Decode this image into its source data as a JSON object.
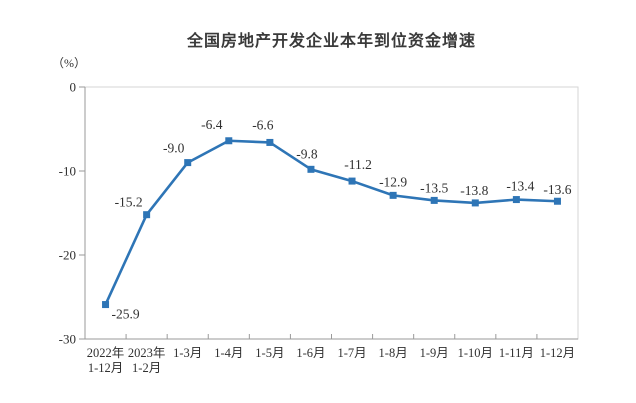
{
  "chart_data": {
    "type": "line",
    "title": "全国房地产开发企业本年到位资金增速",
    "unit_label": "（%）",
    "categories": [
      [
        "2022年",
        "1-12月"
      ],
      [
        "2023年",
        "1-2月"
      ],
      [
        "1-3月"
      ],
      [
        "1-4月"
      ],
      [
        "1-5月"
      ],
      [
        "1-6月"
      ],
      [
        "1-7月"
      ],
      [
        "1-8月"
      ],
      [
        "1-9月"
      ],
      [
        "1-10月"
      ],
      [
        "1-11月"
      ],
      [
        "1-12月"
      ]
    ],
    "values": [
      -25.9,
      -15.2,
      -9.0,
      -6.4,
      -6.6,
      -9.8,
      -11.2,
      -12.9,
      -13.5,
      -13.8,
      -13.4,
      -13.6
    ],
    "point_labels": [
      "-25.9",
      "-15.2",
      "-9.0",
      "-6.4",
      "-6.6",
      "-9.8",
      "-11.2",
      "-12.9",
      "-13.5",
      "-13.8",
      "-13.4",
      "-13.6"
    ],
    "xlabel": "",
    "ylabel": "",
    "ylim": [
      -30,
      0
    ],
    "yticks": [
      0,
      -10,
      -20,
      -30
    ],
    "ytick_labels": [
      "0",
      "-10",
      "-20",
      "-30"
    ],
    "grid": "off",
    "legend": "none",
    "line_color": "#2E75B6",
    "marker_color": "#2E75B6",
    "marker_shape": "square",
    "axis_color": "#9a9a9a",
    "border_color": "#d6d6d6",
    "text_color": "#303030",
    "background_color": "#ffffff"
  }
}
